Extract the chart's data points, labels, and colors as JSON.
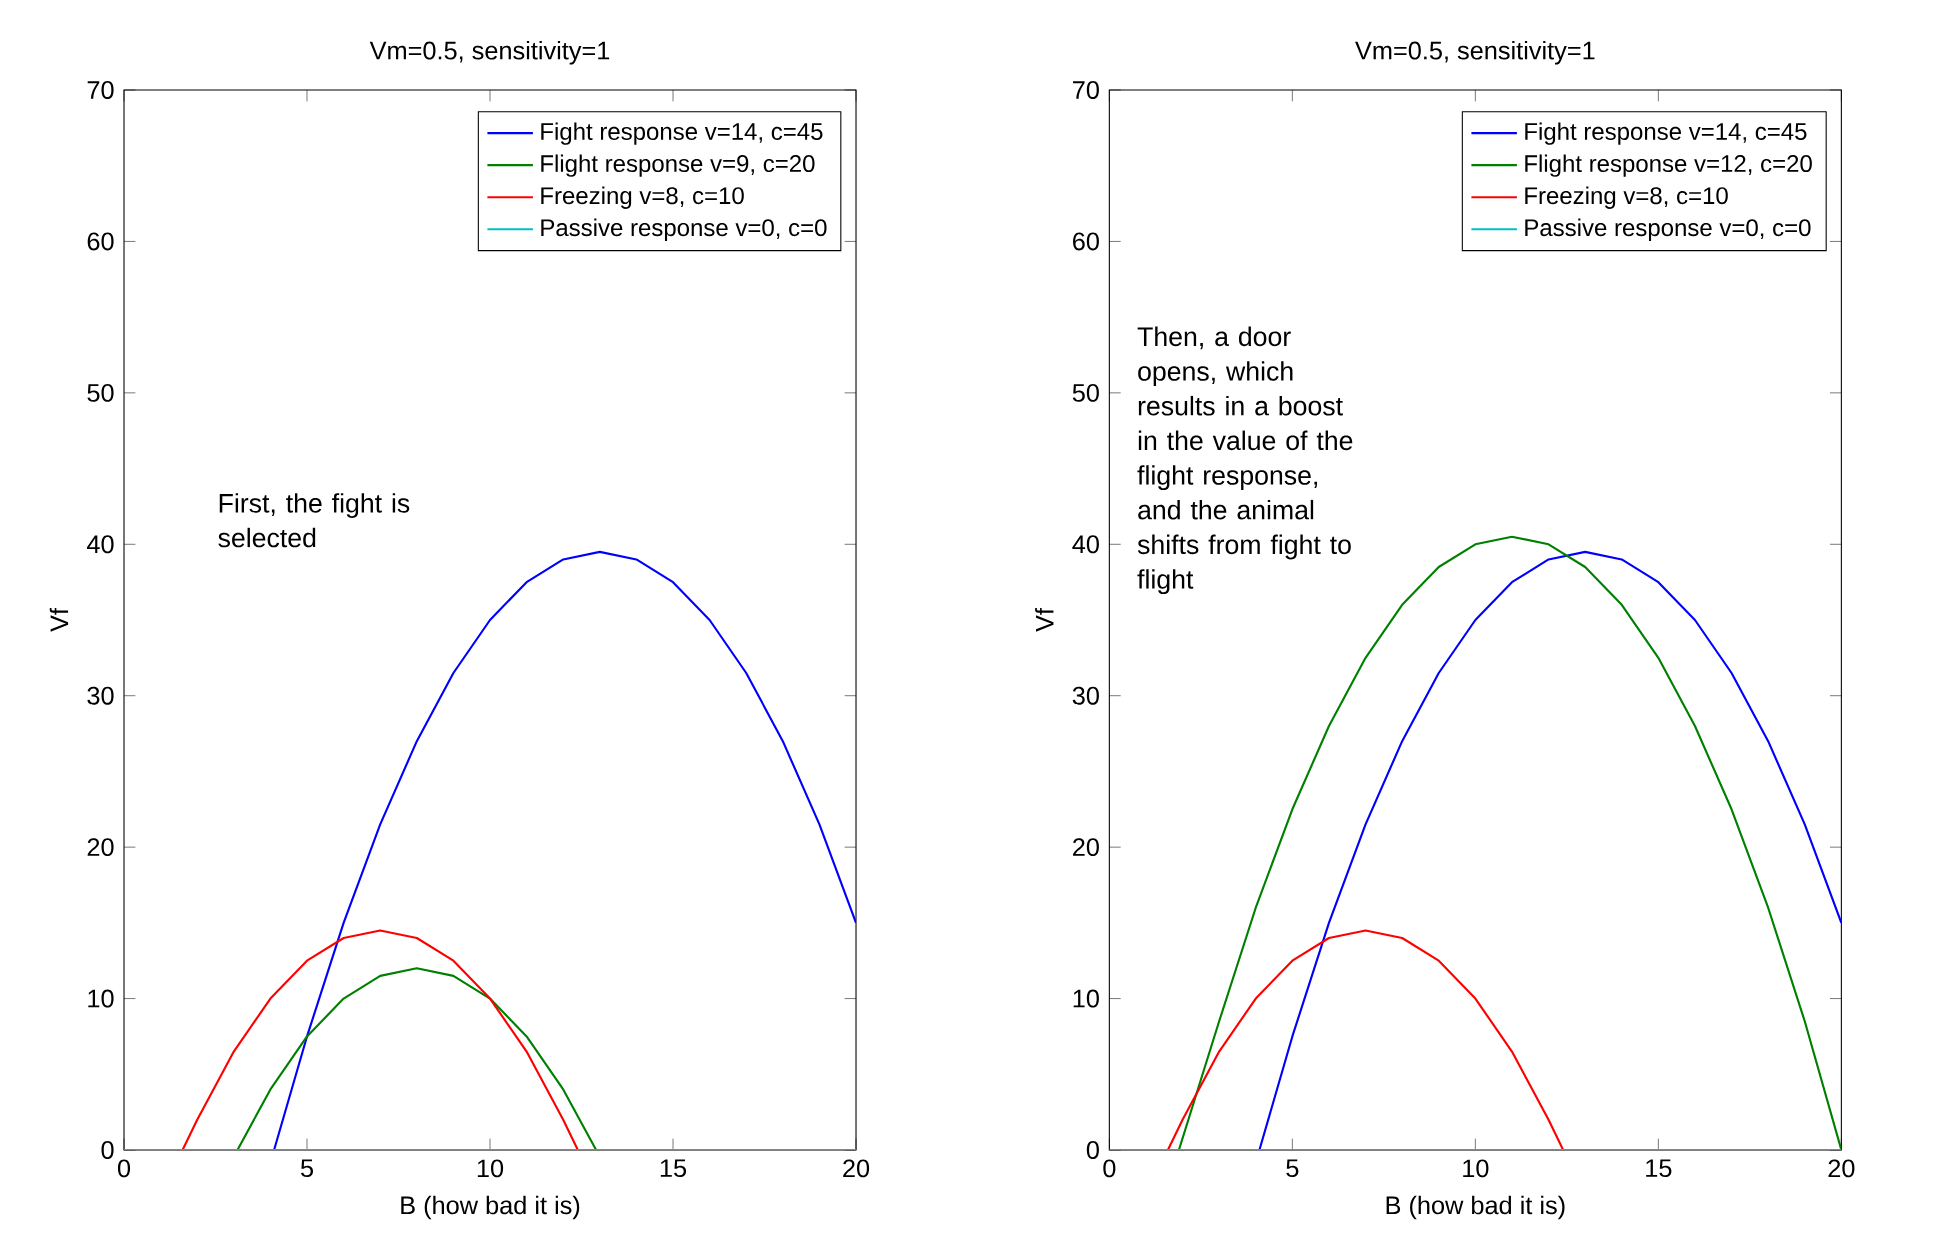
{
  "chart_data": [
    {
      "type": "line",
      "title": "Vm=0.5, sensitivity=1",
      "xlabel": "B (how bad it is)",
      "ylabel": "Vf",
      "xlim": [
        0,
        20
      ],
      "ylim": [
        0,
        70
      ],
      "xticks": [
        0,
        5,
        10,
        15,
        20
      ],
      "yticks": [
        0,
        10,
        20,
        30,
        40,
        50,
        60,
        70
      ],
      "grid": false,
      "legend": "top right",
      "marker": "none",
      "line_style": "solid",
      "annotations": [
        "First, the fight is selected"
      ],
      "series": [
        {
          "name": "Fight response   v=14, c=45",
          "color": "#0000ff",
          "x": [
            4.1,
            5,
            6,
            7,
            8,
            9,
            10,
            11,
            12,
            13,
            14,
            15,
            16,
            17,
            18,
            19,
            20
          ],
          "values": [
            0,
            7.5,
            15,
            21.5,
            27,
            31.5,
            35,
            37.5,
            39,
            39.5,
            39,
            37.5,
            35,
            31.5,
            27,
            21.5,
            15
          ]
        },
        {
          "name": "Flight response  v=9, c=20",
          "color": "#008000",
          "x": [
            3.1,
            4,
            5,
            6,
            7,
            8,
            9,
            10,
            11,
            12,
            12.9
          ],
          "values": [
            0,
            4,
            7.5,
            10,
            11.5,
            12,
            11.5,
            10,
            7.5,
            4,
            0
          ]
        },
        {
          "name": "Freezing         v=8, c=10",
          "color": "#ff0000",
          "x": [
            1.6,
            2,
            3,
            4,
            5,
            6,
            7,
            8,
            9,
            10,
            11,
            12,
            12.4
          ],
          "values": [
            0,
            2,
            6.5,
            10,
            12.5,
            14,
            14.5,
            14,
            12.5,
            10,
            6.5,
            2,
            0
          ]
        },
        {
          "name": "Passive response v=0, c=0",
          "color": "#00bfbf",
          "x": [
            0,
            20
          ],
          "values": [
            0,
            0
          ]
        }
      ]
    },
    {
      "type": "line",
      "title": "Vm=0.5, sensitivity=1",
      "xlabel": "B (how bad it is)",
      "ylabel": "Vf",
      "xlim": [
        0,
        20
      ],
      "ylim": [
        0,
        70
      ],
      "xticks": [
        0,
        5,
        10,
        15,
        20
      ],
      "yticks": [
        0,
        10,
        20,
        30,
        40,
        50,
        60,
        70
      ],
      "grid": false,
      "legend": "top right",
      "marker": "none",
      "line_style": "solid",
      "annotations": [
        "Then, a door opens, which results in a boost in the value of the flight response, and the animal shifts from fight to flight"
      ],
      "series": [
        {
          "name": "Fight response   v=14, c=45",
          "color": "#0000ff",
          "x": [
            4.1,
            5,
            6,
            7,
            8,
            9,
            10,
            11,
            12,
            13,
            14,
            15,
            16,
            17,
            18,
            19,
            20
          ],
          "values": [
            0,
            7.5,
            15,
            21.5,
            27,
            31.5,
            35,
            37.5,
            39,
            39.5,
            39,
            37.5,
            35,
            31.5,
            27,
            21.5,
            15
          ]
        },
        {
          "name": "Flight response  v=12, c=20",
          "color": "#008000",
          "x": [
            1.9,
            3,
            4,
            5,
            6,
            7,
            8,
            9,
            10,
            11,
            12,
            13,
            14,
            15,
            16,
            17,
            18,
            19,
            20
          ],
          "values": [
            0,
            8.5,
            16,
            22.5,
            28,
            32.5,
            36,
            38.5,
            40,
            40.5,
            40,
            38.5,
            36,
            32.5,
            28,
            22.5,
            16,
            8.5,
            0
          ]
        },
        {
          "name": "Freezing         v=8, c=10",
          "color": "#ff0000",
          "x": [
            1.6,
            2,
            3,
            4,
            5,
            6,
            7,
            8,
            9,
            10,
            11,
            12,
            12.4
          ],
          "values": [
            0,
            2,
            6.5,
            10,
            12.5,
            14,
            14.5,
            14,
            12.5,
            10,
            6.5,
            2,
            0
          ]
        },
        {
          "name": "Passive response v=0, c=0",
          "color": "#00bfbf",
          "x": [
            0,
            20
          ],
          "values": [
            0,
            0
          ]
        }
      ]
    }
  ]
}
